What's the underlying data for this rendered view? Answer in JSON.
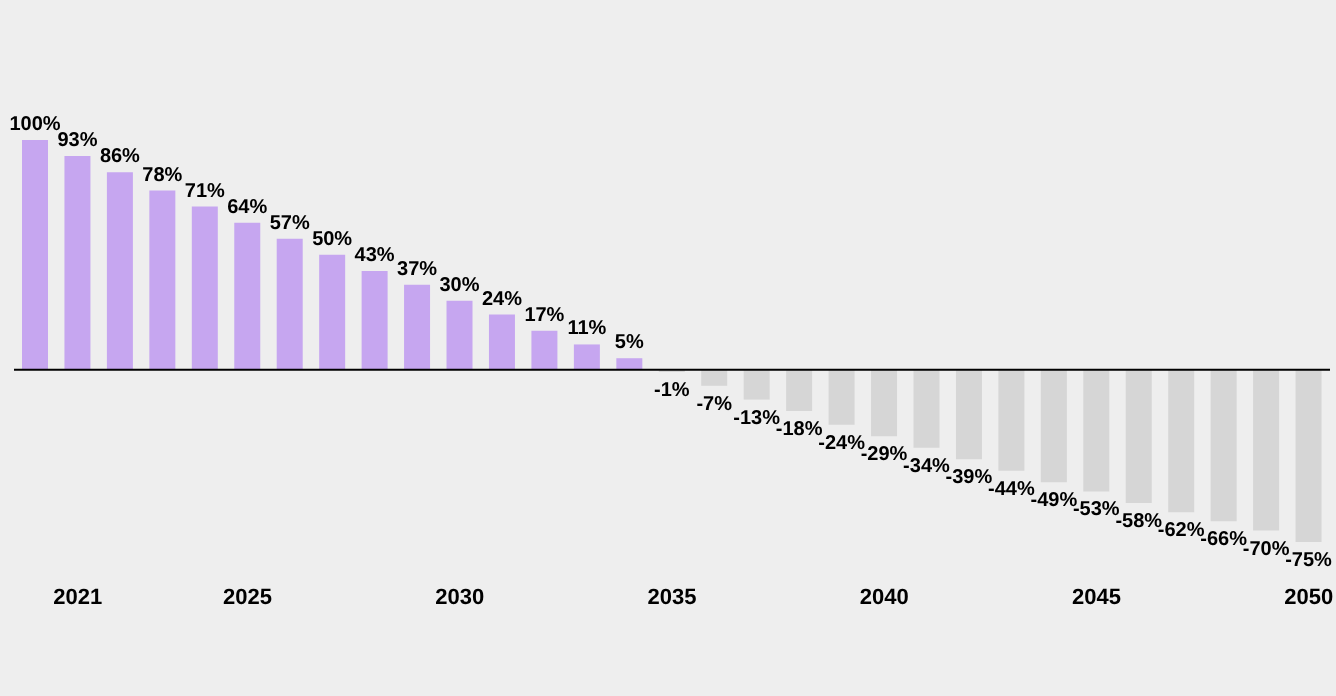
{
  "chart_data": {
    "type": "bar",
    "categories": [
      null,
      "2021",
      null,
      null,
      null,
      "2025",
      null,
      null,
      null,
      null,
      "2030",
      null,
      null,
      null,
      null,
      "2035",
      null,
      null,
      null,
      null,
      "2040",
      null,
      null,
      null,
      null,
      "2045",
      null,
      null,
      null,
      null,
      "2050"
    ],
    "values": [
      100,
      93,
      86,
      78,
      71,
      64,
      57,
      50,
      43,
      37,
      30,
      24,
      17,
      11,
      5,
      -1,
      -7,
      -13,
      -18,
      -24,
      -29,
      -34,
      -39,
      -44,
      -49,
      -53,
      -58,
      -62,
      -66,
      -70,
      -75
    ],
    "value_labels": [
      "100%",
      "93%",
      "86%",
      "78%",
      "71%",
      "64%",
      "57%",
      "50%",
      "43%",
      "37%",
      "30%",
      "24%",
      "17%",
      "11%",
      "5%",
      "-1%",
      "-7%",
      "-13%",
      "-18%",
      "-24%",
      "-29%",
      "-34%",
      "-39%",
      "-44%",
      "-49%",
      "-53%",
      "-58%",
      "-62%",
      "-66%",
      "-70%",
      "-75%"
    ],
    "colors": [
      "#c6a6f0",
      "#c6a6f0",
      "#c6a6f0",
      "#c6a6f0",
      "#c6a6f0",
      "#c6a6f0",
      "#c6a6f0",
      "#c6a6f0",
      "#c6a6f0",
      "#c6a6f0",
      "#c6a6f0",
      "#c6a6f0",
      "#c6a6f0",
      "#c6a6f0",
      "#c6a6f0",
      "#d6d6d6",
      "#d6d6d6",
      "#d6d6d6",
      "#d6d6d6",
      "#d6d6d6",
      "#d6d6d6",
      "#d6d6d6",
      "#d6d6d6",
      "#d6d6d6",
      "#d6d6d6",
      "#d6d6d6",
      "#d6d6d6",
      "#d6d6d6",
      "#d6d6d6",
      "#d6d6d6",
      "#d6d6d6"
    ],
    "grid": false,
    "legend": false
  }
}
